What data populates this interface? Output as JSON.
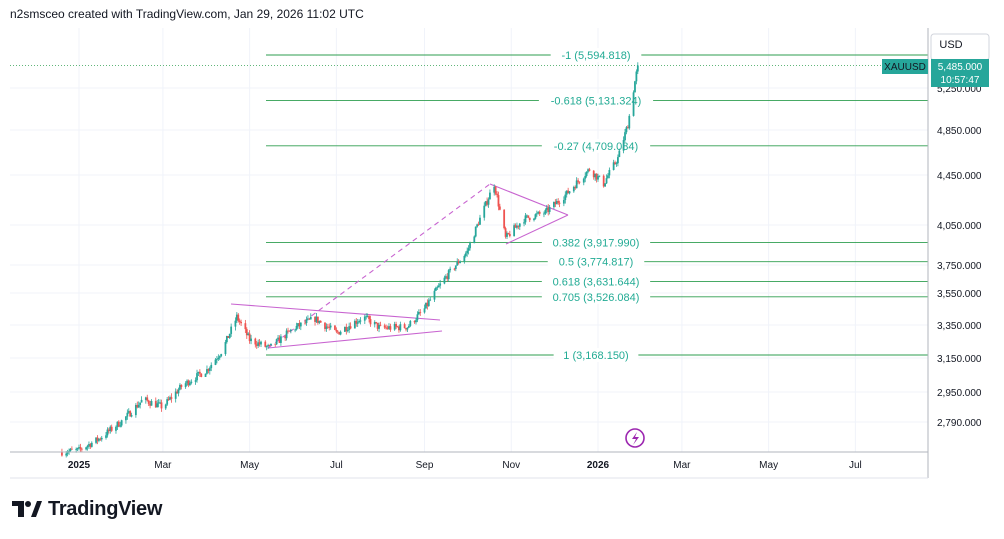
{
  "header": {
    "caption": "n2smsceo created with TradingView.com, Jan 29, 2026 11:02 UTC"
  },
  "symbol": "XAUUSD",
  "currency": "USD",
  "last_price": "5,485.000",
  "countdown": "10:57:47",
  "footer": {
    "logo_text": "TradingView"
  },
  "colors": {
    "up": "#26a69a",
    "down": "#ef5350",
    "fib": "#2e9e4f",
    "pattern": "#c864d0",
    "grid": "#f0f3fa",
    "price_tag": "#26a69a"
  },
  "chart_data": {
    "type": "candlestick",
    "x_ticks": [
      "2025",
      "Mar",
      "May",
      "Jul",
      "Sep",
      "Nov",
      "2026",
      "Mar",
      "May",
      "Jul"
    ],
    "y_ticks": [
      "2,790.000",
      "2,950.000",
      "3,150.000",
      "3,350.000",
      "3,550.000",
      "3,750.000",
      "4,050.000",
      "4,450.000",
      "4,850.000",
      "5,250.000"
    ],
    "fib_levels": [
      {
        "label": "-1 (5,594.818)",
        "value": 5594.818
      },
      {
        "label": "-0.618 (5,131.324)",
        "value": 5131.324
      },
      {
        "label": "-0.27 (4,709.084)",
        "value": 4709.084
      },
      {
        "label": "0.382 (3,917.990)",
        "value": 3917.99
      },
      {
        "label": "0.5 (3,774.817)",
        "value": 3774.817
      },
      {
        "label": "0.618 (3,631.644)",
        "value": 3631.644
      },
      {
        "label": "0.705 (3,526.084)",
        "value": 3526.084
      },
      {
        "label": "1 (3,168.150)",
        "value": 3168.15
      }
    ],
    "price_path": [
      [
        "2024-12-20",
        2630
      ],
      [
        "2025-01-01",
        2640
      ],
      [
        "2025-01-15",
        2700
      ],
      [
        "2025-02-01",
        2800
      ],
      [
        "2025-02-15",
        2910
      ],
      [
        "2025-03-01",
        2870
      ],
      [
        "2025-03-15",
        2990
      ],
      [
        "2025-04-01",
        3080
      ],
      [
        "2025-04-12",
        3200
      ],
      [
        "2025-04-22",
        3400
      ],
      [
        "2025-05-01",
        3260
      ],
      [
        "2025-05-15",
        3210
      ],
      [
        "2025-06-01",
        3330
      ],
      [
        "2025-06-16",
        3390
      ],
      [
        "2025-07-01",
        3300
      ],
      [
        "2025-07-20",
        3400
      ],
      [
        "2025-08-01",
        3330
      ],
      [
        "2025-08-20",
        3340
      ],
      [
        "2025-09-01",
        3450
      ],
      [
        "2025-09-15",
        3650
      ],
      [
        "2025-10-01",
        3850
      ],
      [
        "2025-10-20",
        4380
      ],
      [
        "2025-10-28",
        3950
      ],
      [
        "2025-11-10",
        4100
      ],
      [
        "2025-11-25",
        4150
      ],
      [
        "2025-12-10",
        4300
      ],
      [
        "2025-12-26",
        4500
      ],
      [
        "2026-01-05",
        4380
      ],
      [
        "2026-01-15",
        4600
      ],
      [
        "2026-01-22",
        4900
      ],
      [
        "2026-01-29",
        5485
      ]
    ]
  }
}
